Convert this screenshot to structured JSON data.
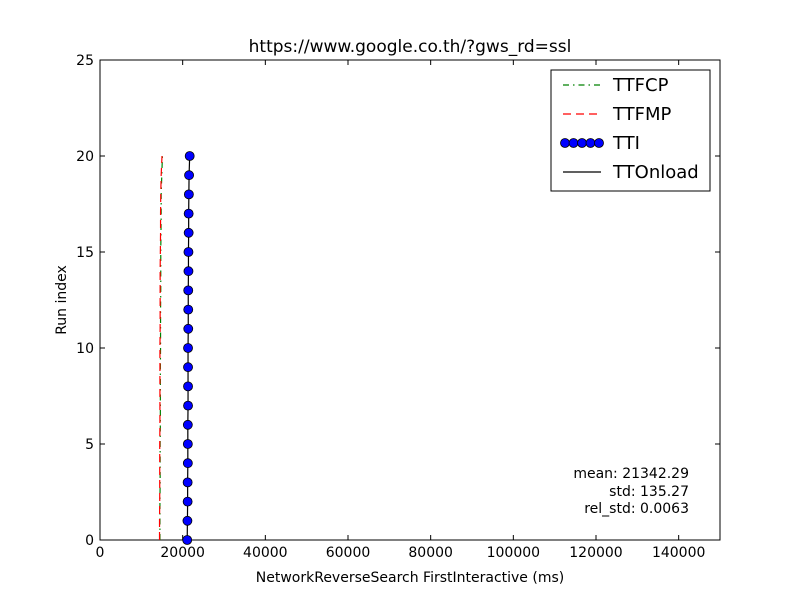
{
  "chart_data": {
    "type": "line",
    "title": "https://www.google.co.th/?gws_rd=ssl",
    "xlabel": "NetworkReverseSearch FirstInteractive (ms)",
    "ylabel": "Run index",
    "xlim": [
      0,
      150000
    ],
    "ylim": [
      0,
      25
    ],
    "xticks": [
      0,
      20000,
      40000,
      60000,
      80000,
      100000,
      120000,
      140000
    ],
    "yticks": [
      0,
      5,
      10,
      15,
      20,
      25
    ],
    "grid": false,
    "legend_position": "top-right",
    "series": [
      {
        "name": "TTFCP",
        "color": "#008000",
        "style": "dash-dot",
        "points": [
          [
            14500,
            0
          ],
          [
            14500,
            1
          ],
          [
            14500,
            2
          ],
          [
            14550,
            3
          ],
          [
            14550,
            4
          ],
          [
            14550,
            5
          ],
          [
            14600,
            6
          ],
          [
            14600,
            7
          ],
          [
            14600,
            8
          ],
          [
            14600,
            9
          ],
          [
            14650,
            10
          ],
          [
            14650,
            11
          ],
          [
            14650,
            12
          ],
          [
            14700,
            13
          ],
          [
            14700,
            14
          ],
          [
            14700,
            15
          ],
          [
            14750,
            16
          ],
          [
            14800,
            17
          ],
          [
            14800,
            18
          ],
          [
            14950,
            19
          ],
          [
            15100,
            20
          ]
        ]
      },
      {
        "name": "TTFMP",
        "color": "#ff0000",
        "style": "dashed",
        "points": [
          [
            14400,
            0
          ],
          [
            14400,
            1
          ],
          [
            14450,
            2
          ],
          [
            14450,
            3
          ],
          [
            14450,
            4
          ],
          [
            14450,
            5
          ],
          [
            14500,
            6
          ],
          [
            14500,
            7
          ],
          [
            14500,
            8
          ],
          [
            14500,
            9
          ],
          [
            14500,
            10
          ],
          [
            14550,
            11
          ],
          [
            14550,
            12
          ],
          [
            14550,
            13
          ],
          [
            14550,
            14
          ],
          [
            14600,
            15
          ],
          [
            14650,
            16
          ],
          [
            14650,
            17
          ],
          [
            14700,
            18
          ],
          [
            14800,
            19
          ],
          [
            15000,
            20
          ]
        ]
      },
      {
        "name": "TTI",
        "color": "#0000ff",
        "style": "markers",
        "points": [
          [
            21100,
            0
          ],
          [
            21150,
            1
          ],
          [
            21200,
            2
          ],
          [
            21200,
            3
          ],
          [
            21250,
            4
          ],
          [
            21250,
            5
          ],
          [
            21250,
            6
          ],
          [
            21300,
            7
          ],
          [
            21300,
            8
          ],
          [
            21300,
            9
          ],
          [
            21300,
            10
          ],
          [
            21350,
            11
          ],
          [
            21350,
            12
          ],
          [
            21350,
            13
          ],
          [
            21400,
            14
          ],
          [
            21400,
            15
          ],
          [
            21450,
            16
          ],
          [
            21450,
            17
          ],
          [
            21500,
            18
          ],
          [
            21550,
            19
          ],
          [
            21700,
            20
          ]
        ]
      },
      {
        "name": "TTOnload",
        "color": "#000000",
        "style": "solid",
        "points": [
          [
            21100,
            0
          ],
          [
            21150,
            1
          ],
          [
            21200,
            2
          ],
          [
            21200,
            3
          ],
          [
            21250,
            4
          ],
          [
            21250,
            5
          ],
          [
            21250,
            6
          ],
          [
            21300,
            7
          ],
          [
            21300,
            8
          ],
          [
            21300,
            9
          ],
          [
            21300,
            10
          ],
          [
            21350,
            11
          ],
          [
            21350,
            12
          ],
          [
            21350,
            13
          ],
          [
            21400,
            14
          ],
          [
            21400,
            15
          ],
          [
            21450,
            16
          ],
          [
            21450,
            17
          ],
          [
            21500,
            18
          ],
          [
            21550,
            19
          ],
          [
            21700,
            20
          ]
        ]
      }
    ],
    "annotations": {
      "mean": "mean: 21342.29",
      "std": "std: 135.27",
      "rel_std": "rel_std: 0.0063"
    }
  }
}
